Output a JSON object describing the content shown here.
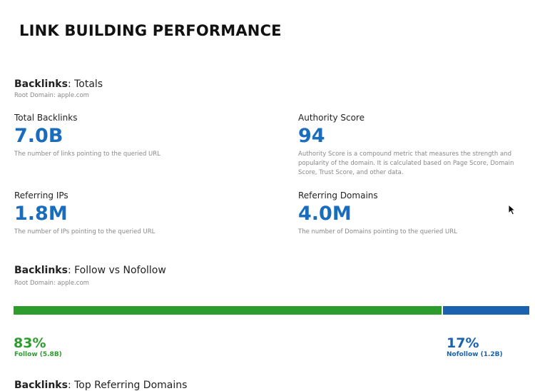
{
  "page": {
    "title": "LINK BUILDING PERFORMANCE"
  },
  "totals_section": {
    "title_bold": "Backlinks",
    "title_rest": ": Totals",
    "root_domain": "Root Domain: apple.com"
  },
  "metrics": {
    "total_backlinks": {
      "label": "Total Backlinks",
      "value": "7.0B",
      "description": "The number of links pointing to the queried URL"
    },
    "authority_score": {
      "label": "Authority Score",
      "value": "94",
      "description": "Authority Score is a compound metric that measures the strength and popularity of the domain. It is calculated based on Page Score, Domain Score, Trust Score, and other data."
    },
    "referring_ips": {
      "label": "Referring IPs",
      "value": "1.8M",
      "description": "The number of IPs pointing to the queried URL"
    },
    "referring_domains": {
      "label": "Referring Domains",
      "value": "4.0M",
      "description": "The number of Domains pointing to the queried URL"
    }
  },
  "follow_section": {
    "title_bold": "Backlinks",
    "title_rest": ": Follow vs Nofollow",
    "root_domain": "Root Domain: apple.com",
    "follow_fraction": 0.83,
    "follow_percent": "83%",
    "follow_label": "Follow (5.8B)",
    "nofollow_percent": "17%",
    "nofollow_label": "Nofollow (1.2B)",
    "colors": {
      "follow": "#2c9d2c",
      "nofollow": "#1a62b0"
    }
  },
  "next_section": {
    "title_bold": "Backlinks",
    "title_rest": ": Top Referring Domains"
  },
  "icons": {
    "cursor": "mouse-pointer-icon"
  }
}
